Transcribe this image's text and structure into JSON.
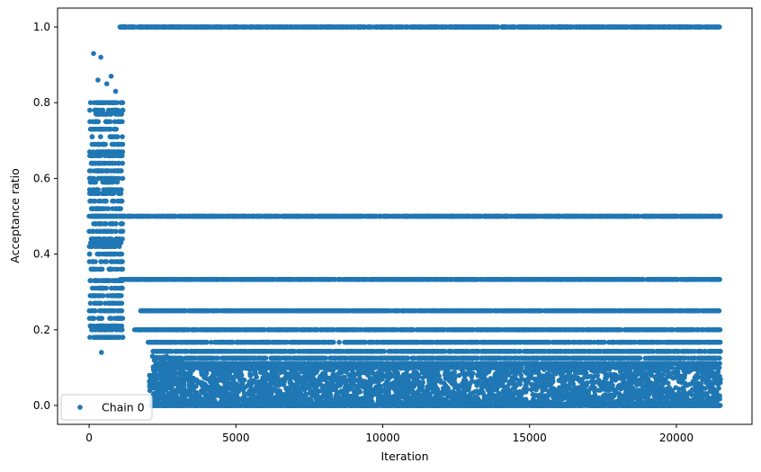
{
  "chart_data": {
    "type": "scatter",
    "title": "",
    "xlabel": "Iteration",
    "ylabel": "Acceptance ratio",
    "xlim": [
      -1075,
      22575
    ],
    "ylim": [
      -0.05,
      1.05
    ],
    "xticks": [
      0,
      5000,
      10000,
      15000,
      20000
    ],
    "xtick_labels": [
      "0",
      "5000",
      "10000",
      "15000",
      "20000"
    ],
    "yticks": [
      0.0,
      0.2,
      0.4,
      0.6,
      0.8,
      1.0
    ],
    "ytick_labels": [
      "0.0",
      "0.2",
      "0.4",
      "0.6",
      "0.8",
      "1.0"
    ],
    "grid": false,
    "legend_position": "lower-left",
    "series": [
      {
        "name": "Chain 0",
        "color": "#1f77b4",
        "marker": "circle",
        "x_range": [
          0,
          21500
        ],
        "segments": [
          {
            "x_range": [
              0,
              1150
            ],
            "description_values": [
              0.18,
              0.2,
              0.21,
              0.23,
              0.25,
              0.27,
              0.29,
              0.31,
              0.33,
              0.36,
              0.38,
              0.4,
              0.42,
              0.43,
              0.44,
              0.46,
              0.48,
              0.5,
              0.52,
              0.54,
              0.56,
              0.57,
              0.59,
              0.6,
              0.62,
              0.64,
              0.66,
              0.67,
              0.69,
              0.71,
              0.73,
              0.75,
              0.77,
              0.78,
              0.8
            ]
          },
          {
            "x_range": [
              1050,
              21500
            ],
            "levels": [
              1.0,
              0.5,
              0.333,
              0.25,
              0.2,
              0.167,
              0.143,
              0.125,
              0.111,
              0.1
            ]
          },
          {
            "x_range": [
              2100,
              21500
            ],
            "dense_band": [
              0.0,
              0.1
            ]
          }
        ],
        "outliers": [
          {
            "x": 150,
            "y": 0.93
          },
          {
            "x": 400,
            "y": 0.92
          },
          {
            "x": 750,
            "y": 0.87
          },
          {
            "x": 600,
            "y": 0.85
          },
          {
            "x": 300,
            "y": 0.86
          },
          {
            "x": 900,
            "y": 0.83
          },
          {
            "x": 420,
            "y": 0.14
          }
        ]
      }
    ]
  }
}
